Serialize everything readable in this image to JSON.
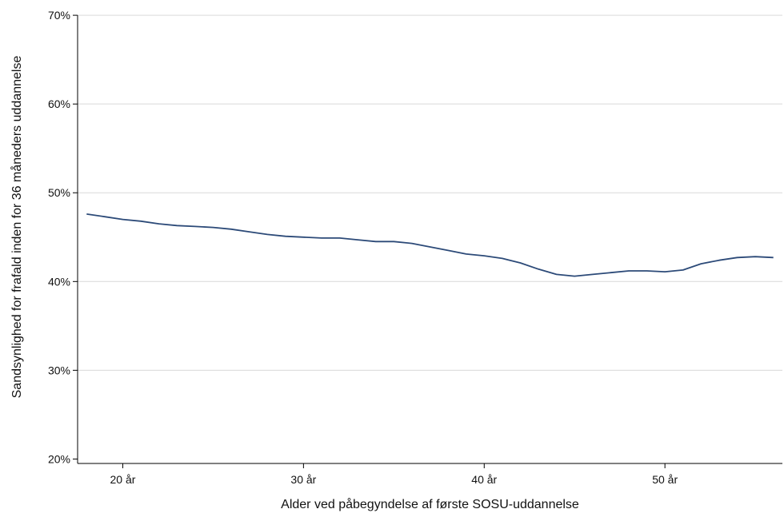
{
  "chart_data": {
    "type": "line",
    "title": "",
    "xlabel": "Alder ved påbegyndelse af første SOSU-uddannelse",
    "ylabel": "Sandsynlighed for frafald inden for 36 måneders uddannelse",
    "xlim": [
      17.5,
      56.5
    ],
    "ylim": [
      19.5,
      71
    ],
    "x_ticks": [
      20,
      30,
      40,
      50
    ],
    "x_tick_labels": [
      "20 år",
      "30 år",
      "40 år",
      "50 år"
    ],
    "y_ticks": [
      20,
      30,
      40,
      50,
      60,
      70
    ],
    "y_tick_labels": [
      "20%",
      "30%",
      "40%",
      "50%",
      "60%",
      "70%"
    ],
    "grid": "horizontal",
    "legend": "none",
    "series": [
      {
        "color": "#2c4a78",
        "x": [
          18,
          19,
          20,
          21,
          22,
          23,
          24,
          25,
          26,
          27,
          28,
          29,
          30,
          31,
          32,
          33,
          34,
          35,
          36,
          37,
          38,
          39,
          40,
          41,
          42,
          43,
          44,
          45,
          46,
          47,
          48,
          49,
          50,
          51,
          52,
          53,
          54,
          55,
          56
        ],
        "values": [
          47.6,
          47.3,
          47.0,
          46.8,
          46.5,
          46.3,
          46.2,
          46.1,
          45.9,
          45.6,
          45.3,
          45.1,
          45.0,
          44.9,
          44.9,
          44.7,
          44.5,
          44.5,
          44.3,
          43.9,
          43.5,
          43.1,
          42.9,
          42.6,
          42.1,
          41.4,
          40.8,
          40.6,
          40.8,
          41.0,
          41.2,
          41.2,
          41.1,
          41.3,
          42.0,
          42.4,
          42.7,
          42.8,
          42.7
        ]
      }
    ]
  }
}
